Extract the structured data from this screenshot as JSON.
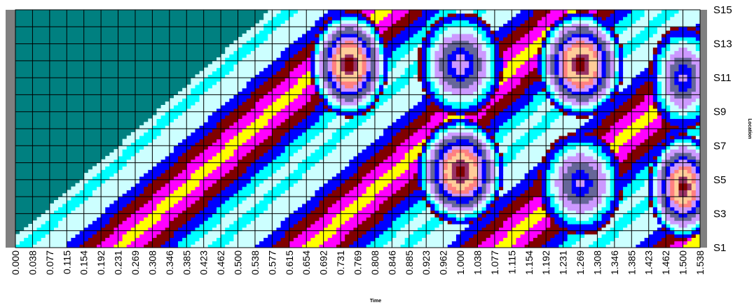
{
  "chart_data": {
    "type": "heatmap",
    "title": "",
    "xlabel": "Time",
    "ylabel": "Location",
    "x_ticks": [
      "0.000",
      "0.038",
      "0.077",
      "0.115",
      "0.154",
      "0.192",
      "0.231",
      "0.269",
      "0.308",
      "0.346",
      "0.385",
      "0.423",
      "0.462",
      "0.500",
      "0.538",
      "0.577",
      "0.615",
      "0.654",
      "0.692",
      "0.731",
      "0.769",
      "0.808",
      "0.846",
      "0.885",
      "0.923",
      "0.962",
      "1.000",
      "1.038",
      "1.077",
      "1.115",
      "1.154",
      "1.192",
      "1.231",
      "1.269",
      "1.308",
      "1.346",
      "1.385",
      "1.423",
      "1.462",
      "1.500",
      "1.538"
    ],
    "y_ticks": [
      "S1",
      "S3",
      "S5",
      "S7",
      "S9",
      "S11",
      "S13",
      "S15"
    ],
    "x_range": [
      0,
      1.538
    ],
    "y_range": [
      1,
      15
    ],
    "grid": true,
    "colors": [
      "#008080",
      "#0000ff",
      "#00ffff",
      "#ccffff",
      "#800000",
      "#ff00ff",
      "#ffff00",
      "#ff8080",
      "#ffcc99",
      "#cc99ff",
      "#666699",
      "#993366",
      "#008000",
      "#ffffff"
    ],
    "contour_sources": [
      {
        "t": 0.75,
        "s": 11.8,
        "amp": 1.0,
        "width": 0.09
      },
      {
        "t": 1.0,
        "s": 11.8,
        "amp": 0.6,
        "width": 0.1
      },
      {
        "t": 1.27,
        "s": 11.8,
        "amp": 1.0,
        "width": 0.1
      },
      {
        "t": 1.5,
        "s": 11.0,
        "amp": 0.55,
        "width": 0.08
      },
      {
        "t": 1.0,
        "s": 5.5,
        "amp": 1.0,
        "width": 0.1
      },
      {
        "t": 1.27,
        "s": 4.8,
        "amp": 0.55,
        "width": 0.1
      },
      {
        "t": 1.5,
        "s": 4.6,
        "amp": 0.95,
        "width": 0.08
      }
    ]
  }
}
